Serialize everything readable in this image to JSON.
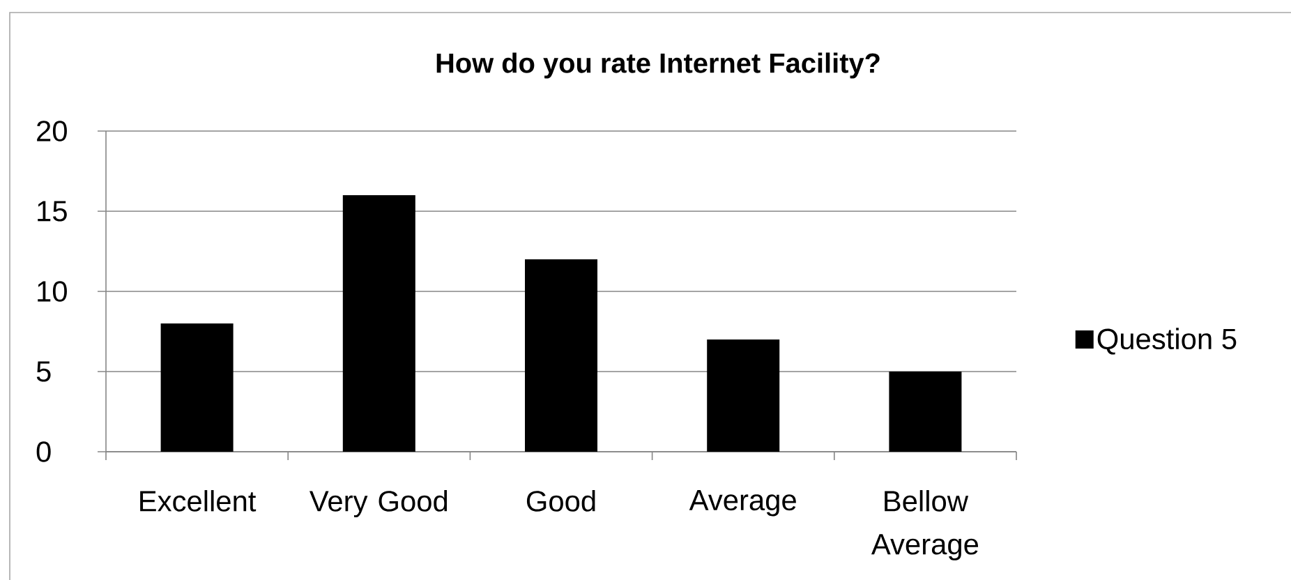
{
  "chart_data": {
    "type": "bar",
    "title": "How do you rate Internet Facility?",
    "categories": [
      "Excellent",
      "Very Good",
      "Good",
      "Average",
      "Bellow Average"
    ],
    "series": [
      {
        "name": "Question 5",
        "color": "#000000",
        "values": [
          8,
          16,
          12,
          7,
          5
        ]
      }
    ],
    "ylim": [
      0,
      20
    ],
    "yticks": [
      0,
      5,
      10,
      15,
      20
    ],
    "grid": "y",
    "legend": "right"
  }
}
